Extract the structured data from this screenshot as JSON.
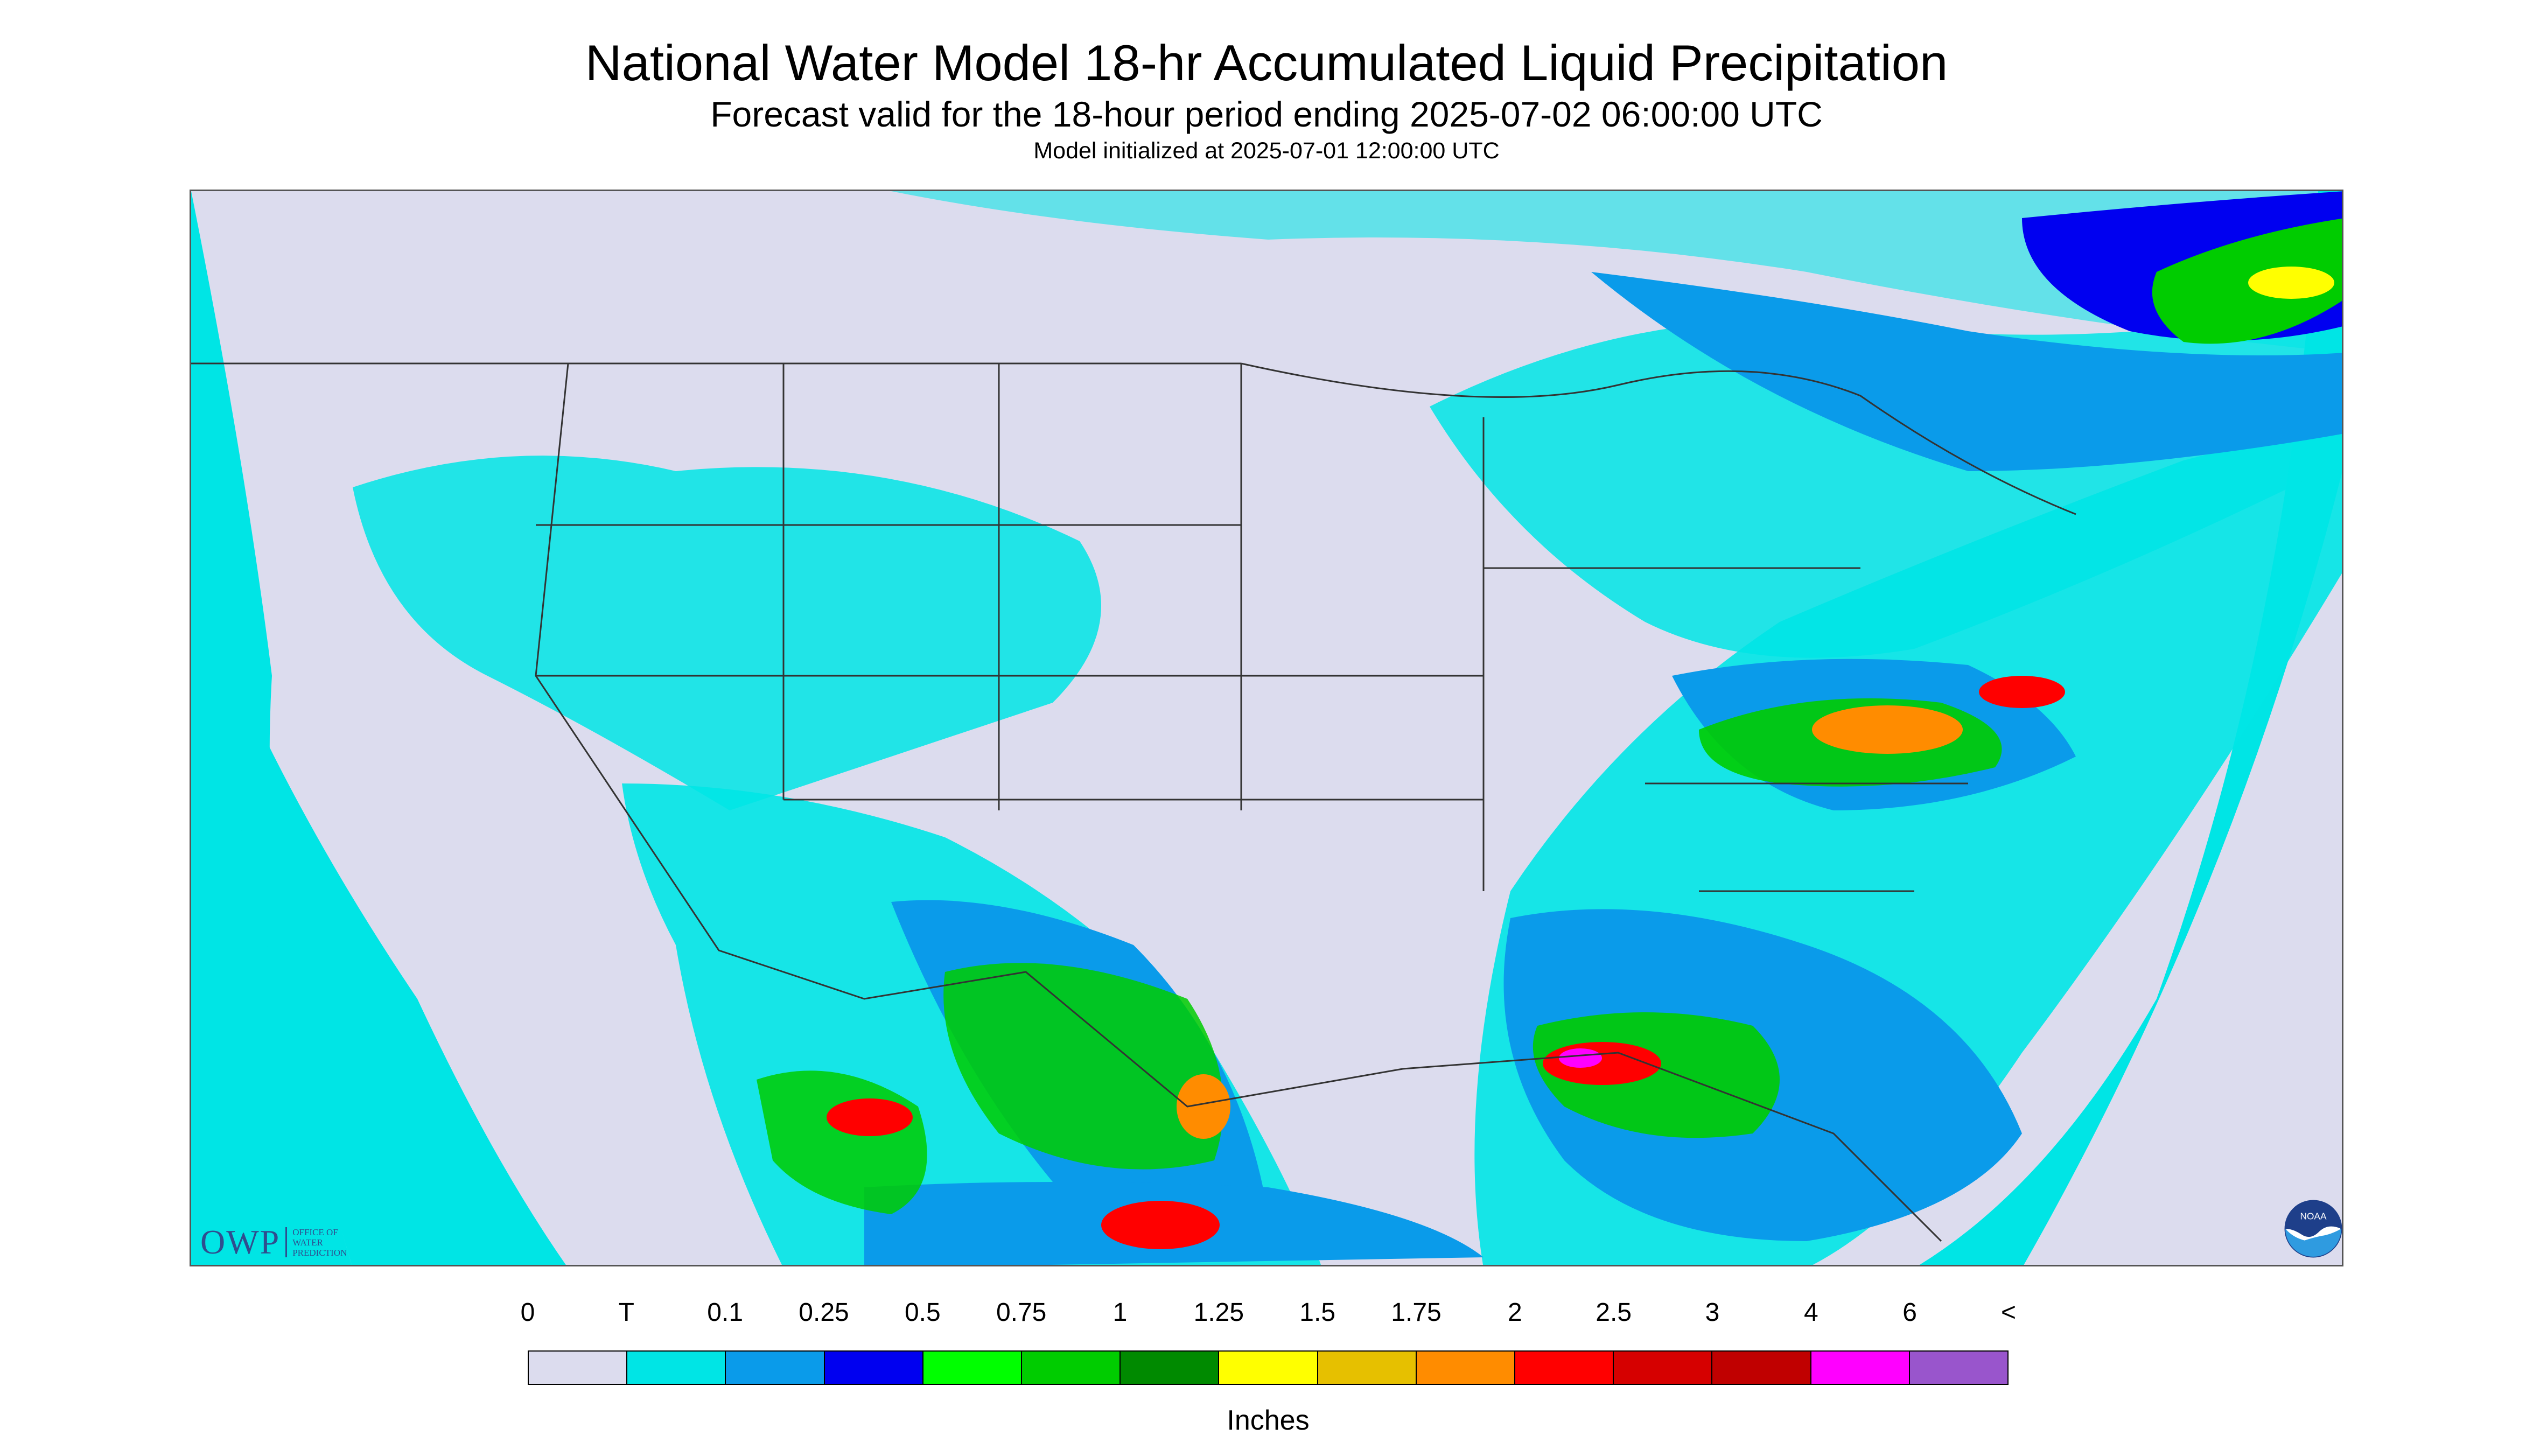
{
  "header": {
    "title": "National Water Model 18-hr Accumulated Liquid Precipitation",
    "subtitle": "Forecast valid for the 18-hour period ending 2025-07-02 06:00:00 UTC",
    "init_note": "Model initialized at 2025-07-01 12:00:00 UTC"
  },
  "logos": {
    "owp_big": "OWP",
    "owp_lines": [
      "OFFICE OF",
      "WATER",
      "PREDICTION"
    ],
    "noaa_text": "NOAA"
  },
  "legend": {
    "labels": [
      "0",
      "T",
      "0.1",
      "0.25",
      "0.5",
      "0.75",
      "1",
      "1.25",
      "1.5",
      "1.75",
      "2",
      "2.5",
      "3",
      "4",
      "6",
      "<"
    ],
    "colors": [
      "#dcdcee",
      "#00e5e5",
      "#0a9bea",
      "#0000f0",
      "#00ff00",
      "#00cc00",
      "#008a00",
      "#ffff00",
      "#e6c000",
      "#ff8c00",
      "#ff0000",
      "#d60000",
      "#c00000",
      "#ff00ff",
      "#9955cc"
    ],
    "unit": "Inches"
  },
  "map_colors": {
    "background": "#dcdcee",
    "trace": "#00e5e5",
    "light": "#0a9bea",
    "moderate": "#0000f0",
    "green": "#00cc00",
    "heavy_yellow": "#ffff00",
    "heavy_orange": "#ff8c00",
    "heavy_red": "#ff0000",
    "extreme": "#ff00ff",
    "borders": "#333333"
  }
}
